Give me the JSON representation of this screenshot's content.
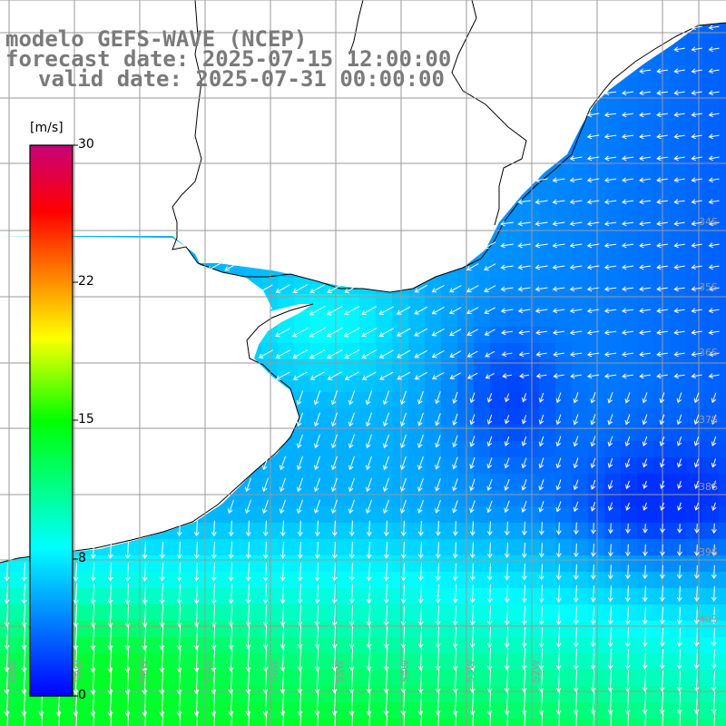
{
  "title": {
    "line1": "modelo GEFS-WAVE (NCEP)",
    "line2": "forecast date: 2025-07-15 12:00:00",
    "line3": "valid date: 2025-07-31 00:00:00"
  },
  "colorbar": {
    "unit": "[m/s]",
    "ticks": [
      "30",
      "22",
      "15",
      "8",
      "0"
    ]
  },
  "lat_labels": [
    "34S",
    "35S",
    "36S",
    "37S",
    "38S",
    "39S",
    "40S"
  ],
  "lon_labels": [
    "60W",
    "59W",
    "58W",
    "57W",
    "56W",
    "55W",
    "54W",
    "53W",
    "52W"
  ],
  "colors": {
    "land": "#ffffff",
    "grid": "#9a9a9a",
    "coast": "#000000",
    "title": "#7a7a7a",
    "arrows": "#ffffff"
  }
}
